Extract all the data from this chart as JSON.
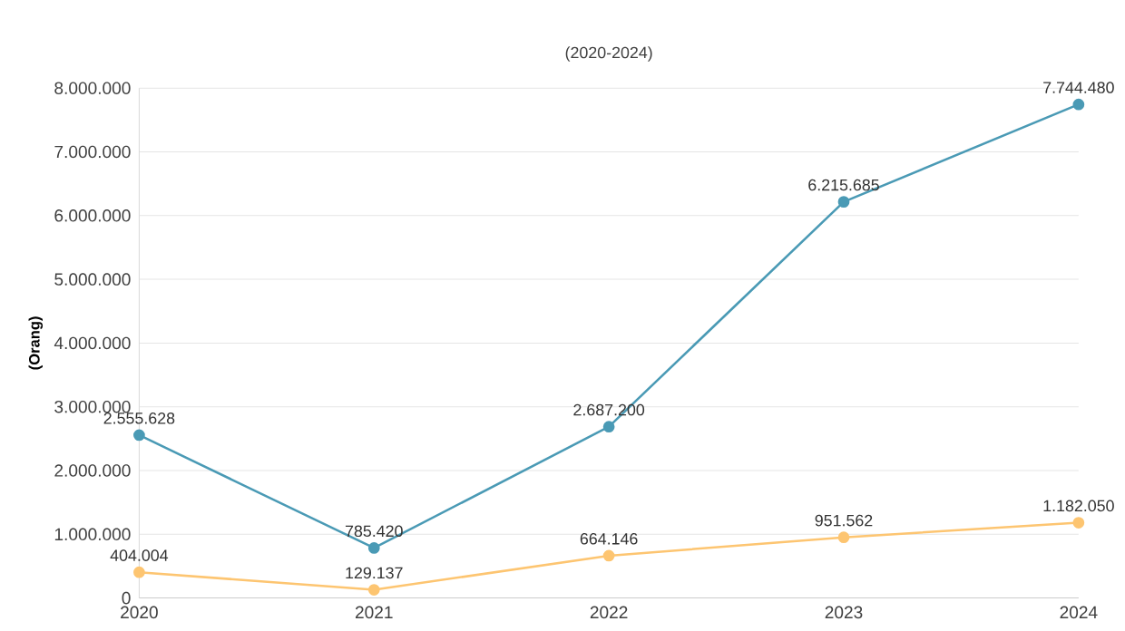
{
  "chart_data": {
    "type": "line",
    "title": "(2020-2024)",
    "ylabel": "(Orang)",
    "categories": [
      "2020",
      "2021",
      "2022",
      "2023",
      "2024"
    ],
    "series": [
      {
        "color": "#4a9ab5",
        "values": [
          2555628,
          785420,
          2687200,
          6215685,
          7744480
        ],
        "value_labels": [
          "2.555.628",
          "785.420",
          "2.687.200",
          "6.215.685",
          "7.744.480"
        ]
      },
      {
        "color": "#fdc571",
        "values": [
          404004,
          129137,
          664146,
          951562,
          1182050
        ],
        "value_labels": [
          "404.004",
          "129.137",
          "664.146",
          "951.562",
          "1.182.050"
        ]
      }
    ],
    "ylim": [
      0,
      8000000
    ],
    "yticks": [
      0,
      {
        "value": 1000000,
        "label": "1.000.000"
      },
      {
        "value": 2000000,
        "label": "2.000.000"
      },
      {
        "value": 3000000,
        "label": "3.000.000"
      },
      {
        "value": 4000000,
        "label": "4.000.000"
      },
      {
        "value": 5000000,
        "label": "5.000.000"
      },
      {
        "value": 6000000,
        "label": "6.000.000"
      },
      {
        "value": 7000000,
        "label": "7.000.000"
      },
      {
        "value": 8000000,
        "label": "8.000.000"
      }
    ],
    "grid": "y",
    "marker": "circle",
    "line_style": "solid"
  }
}
